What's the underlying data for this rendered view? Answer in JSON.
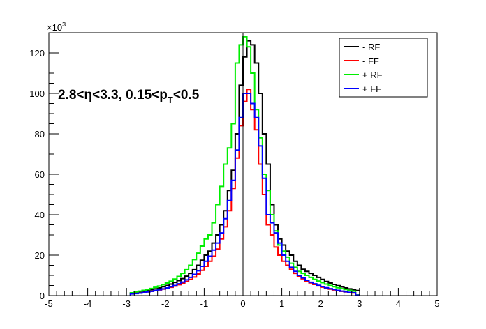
{
  "chart_data": {
    "type": "line",
    "style": "step-histogram",
    "xlim": [
      -5,
      5
    ],
    "ylim": [
      0,
      130
    ],
    "y_multiplier_label": "×10",
    "y_multiplier_exponent": "3",
    "x_ticks": [
      "-5",
      "-4",
      "-3",
      "-2",
      "-1",
      "0",
      "1",
      "2",
      "3",
      "4",
      "5"
    ],
    "y_ticks": [
      "0",
      "20",
      "40",
      "60",
      "80",
      "100",
      "120"
    ],
    "annotation": {
      "prefix": "2.8<η<3.3, 0.15<p",
      "sub": "T",
      "suffix": "<0.5"
    },
    "legend_position": "top-right",
    "bin_width": 0.1,
    "x_start": -2.9,
    "series": [
      {
        "name": "- RF",
        "color": "#000000",
        "values": [
          1.2,
          1.5,
          1.8,
          2.1,
          2.5,
          2.9,
          3.3,
          3.8,
          4.4,
          5.0,
          5.7,
          6.5,
          7.4,
          8.4,
          9.6,
          11,
          12.8,
          15,
          17.5,
          20,
          22,
          26,
          30,
          35,
          42,
          52,
          62,
          80,
          104,
          118,
          126,
          124,
          115,
          100,
          80,
          65,
          45,
          35,
          28,
          25,
          22,
          20,
          17,
          15,
          13,
          12,
          11,
          10,
          9,
          8,
          7,
          6.2,
          5.5,
          4.9,
          4.3,
          3.8,
          3.3,
          2.9,
          2.5
        ]
      },
      {
        "name": "- FF",
        "color": "#ff0000",
        "values": [
          0.9,
          1.1,
          1.3,
          1.5,
          1.8,
          2.1,
          2.4,
          2.8,
          3.2,
          3.6,
          4.1,
          4.7,
          5.4,
          6.1,
          7.0,
          8.0,
          9.2,
          10.7,
          12.5,
          14.5,
          17,
          19.5,
          23,
          28,
          34,
          42,
          53,
          68,
          84,
          96,
          102,
          92,
          82,
          65,
          50,
          35,
          30,
          24,
          20,
          17,
          15,
          13,
          11,
          9.5,
          8.3,
          7.2,
          6.3,
          5.5,
          4.8,
          4.2,
          3.7,
          3.2,
          2.8,
          2.4,
          2.1,
          1.8,
          1.5,
          1.3,
          0.2
        ]
      },
      {
        "name": "+ RF",
        "color": "#00ee00",
        "values": [
          1.4,
          1.8,
          2.2,
          2.6,
          3.0,
          3.5,
          4.1,
          4.7,
          5.4,
          6.2,
          7.1,
          8.2,
          9.5,
          11,
          12.8,
          15,
          17.8,
          21,
          24.5,
          28,
          30,
          36,
          45,
          54,
          65,
          73,
          85,
          115,
          124,
          128,
          123,
          110,
          92,
          78,
          60,
          52,
          40,
          32,
          25,
          22,
          19,
          16,
          14,
          12,
          11,
          10,
          9,
          8,
          7.2,
          6.4,
          5.7,
          5.0,
          4.4,
          3.9,
          3.4,
          3.0,
          2.6,
          2.2,
          0.3
        ]
      },
      {
        "name": "+ FF",
        "color": "#0000ff",
        "values": [
          0.8,
          1.0,
          1.2,
          1.5,
          1.8,
          2.1,
          2.5,
          2.9,
          3.3,
          3.8,
          4.4,
          5.0,
          5.8,
          6.7,
          7.8,
          9.0,
          10.5,
          12.3,
          14.5,
          17,
          19.5,
          22.5,
          26,
          31,
          38,
          47,
          57,
          72,
          88,
          100,
          100,
          95,
          88,
          74,
          58,
          40,
          36,
          31,
          26,
          20,
          17,
          14,
          12,
          10,
          8.8,
          7.6,
          6.6,
          5.8,
          5.1,
          4.5,
          3.9,
          3.4,
          3.0,
          2.6,
          2.2,
          1.9,
          1.6,
          1.4,
          0.2
        ]
      }
    ]
  }
}
